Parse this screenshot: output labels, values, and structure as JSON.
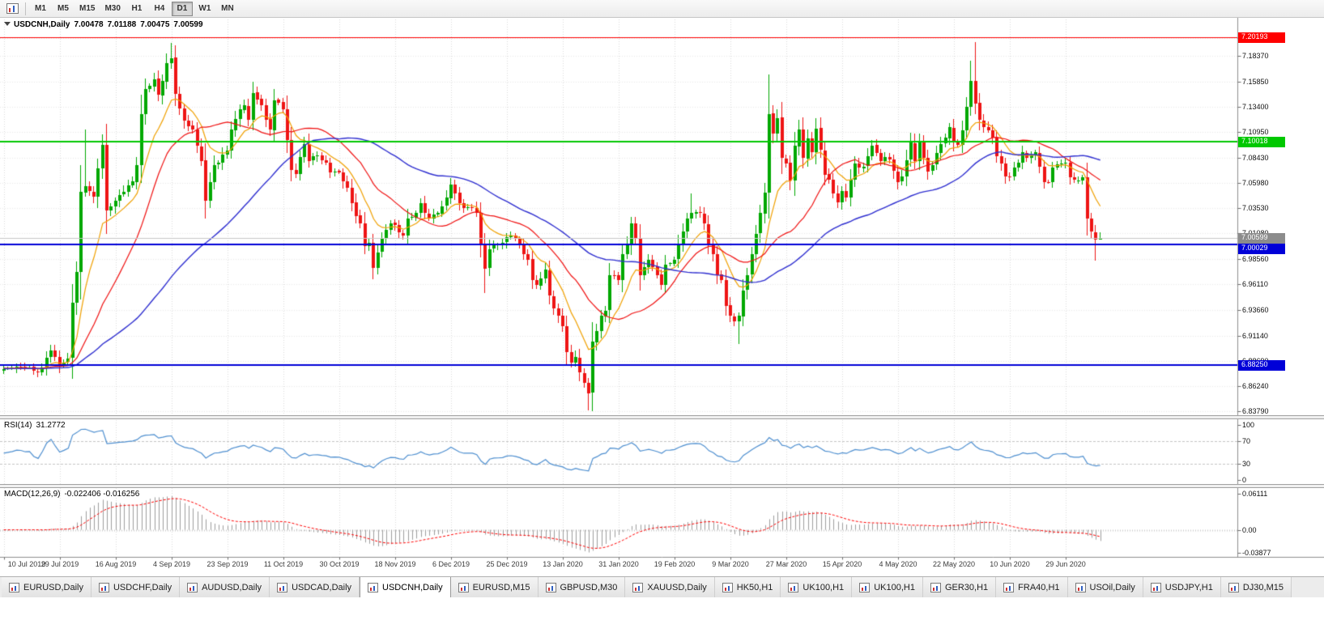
{
  "toolbar": {
    "timeframes": [
      "M1",
      "M5",
      "M15",
      "M30",
      "H1",
      "H4",
      "D1",
      "W1",
      "MN"
    ],
    "active": "D1"
  },
  "chart_data": {
    "type": "candlestick",
    "title": "USDCNH,Daily",
    "symbol": "USDCNH",
    "period": "Daily",
    "ohlc": {
      "open": "7.00478",
      "high": "7.01188",
      "low": "7.00475",
      "close": "7.00599"
    },
    "y_ticks": [
      "7.20080",
      "7.18370",
      "7.15850",
      "7.13400",
      "7.10950",
      "7.08430",
      "7.05980",
      "7.03530",
      "7.01080",
      "6.98560",
      "6.96110",
      "6.93660",
      "6.91140",
      "6.88690",
      "6.86240",
      "6.83790"
    ],
    "x_labels": [
      {
        "bar": 0,
        "label": "10 Jul 2019"
      },
      {
        "bar": 13,
        "label": "29 Jul 2019"
      },
      {
        "bar": 26,
        "label": "16 Aug 2019"
      },
      {
        "bar": 39,
        "label": "4 Sep 2019"
      },
      {
        "bar": 52,
        "label": "23 Sep 2019"
      },
      {
        "bar": 65,
        "label": "11 Oct 2019"
      },
      {
        "bar": 78,
        "label": "30 Oct 2019"
      },
      {
        "bar": 91,
        "label": "18 Nov 2019"
      },
      {
        "bar": 104,
        "label": "6 Dec 2019"
      },
      {
        "bar": 117,
        "label": "25 Dec 2019"
      },
      {
        "bar": 130,
        "label": "13 Jan 2020"
      },
      {
        "bar": 143,
        "label": "31 Jan 2020"
      },
      {
        "bar": 156,
        "label": "19 Feb 2020"
      },
      {
        "bar": 169,
        "label": "9 Mar 2020"
      },
      {
        "bar": 182,
        "label": "27 Mar 2020"
      },
      {
        "bar": 195,
        "label": "15 Apr 2020"
      },
      {
        "bar": 208,
        "label": "4 May 2020"
      },
      {
        "bar": 221,
        "label": "22 May 2020"
      },
      {
        "bar": 234,
        "label": "10 Jun 2020"
      },
      {
        "bar": 247,
        "label": "29 Jun 2020"
      }
    ],
    "levels": [
      {
        "price": 7.20193,
        "label": "7.20193",
        "color": "#FF0000",
        "width": 1
      },
      {
        "price": 7.10018,
        "label": "7.10018",
        "color": "#00C800",
        "width": 2
      },
      {
        "price": 7.00029,
        "label": "7.00029",
        "color": "#0000D8",
        "width": 2
      },
      {
        "price": 6.8825,
        "label": "6.88250",
        "color": "#0000D8",
        "width": 2
      }
    ],
    "current_price": {
      "value": 7.00599,
      "label": "7.00599",
      "tag_color": "#8C8C8C",
      "line_color": "#C8C8C8"
    },
    "colors": {
      "up": "#00A800",
      "down": "#EE1414",
      "grid_v": "#DADADA",
      "grid_h": "#E9E9E9",
      "axis": "#8E8E8E"
    },
    "moving_averages": [
      {
        "method": "ema",
        "period": 10,
        "color": "#F0A000"
      },
      {
        "method": "sma",
        "period": 21,
        "color": "#F01010"
      },
      {
        "method": "sma",
        "period": 55,
        "color": "#2F2FD0"
      }
    ],
    "rsi": {
      "label": "RSI(14)",
      "value": "31.2772",
      "period": 14,
      "color": "#4E8FD0",
      "axis": [
        "100",
        "70",
        "30",
        "0"
      ],
      "levels": [
        70,
        30
      ]
    },
    "macd": {
      "label": "MACD(12,26,9)",
      "value": "-0.022406 -0.016256",
      "fast": 12,
      "slow": 26,
      "signal": 9,
      "hist_color": "#9E9E9E",
      "signal_color": "#FF0000",
      "axis": [
        "0.06111",
        "0.00",
        "-0.03877"
      ]
    },
    "seed": 11,
    "bars": {
      "count": 256,
      "anchors": [
        [
          0,
          6.879
        ],
        [
          4,
          6.881
        ],
        [
          8,
          6.8755
        ],
        [
          11,
          6.897
        ],
        [
          13,
          6.8825
        ],
        [
          15,
          6.889
        ],
        [
          16,
          6.943
        ],
        [
          17,
          6.973
        ],
        [
          18,
          7.051
        ],
        [
          19,
          7.057
        ],
        [
          21,
          7.0465
        ],
        [
          23,
          7.097
        ],
        [
          24,
          7.033
        ],
        [
          26,
          7.0425
        ],
        [
          28,
          7.0515
        ],
        [
          30,
          7.0615
        ],
        [
          31,
          7.0775
        ],
        [
          32,
          7.127
        ],
        [
          33,
          7.151
        ],
        [
          35,
          7.161
        ],
        [
          36,
          7.1455
        ],
        [
          38,
          7.1765
        ],
        [
          39,
          7.1815
        ],
        [
          40,
          7.1465
        ],
        [
          42,
          7.1205
        ],
        [
          44,
          7.1115
        ],
        [
          46,
          7.0815
        ],
        [
          47,
          7.0425
        ],
        [
          49,
          7.0775
        ],
        [
          52,
          7.0915
        ],
        [
          53,
          7.1115
        ],
        [
          55,
          7.1315
        ],
        [
          56,
          7.1355
        ],
        [
          57,
          7.1215
        ],
        [
          58,
          7.1475
        ],
        [
          60,
          7.1355
        ],
        [
          61,
          7.1215
        ],
        [
          62,
          7.1115
        ],
        [
          63,
          7.1405
        ],
        [
          65,
          7.1315
        ],
        [
          66,
          7.1015
        ],
        [
          67,
          7.0725
        ],
        [
          68,
          7.0685
        ],
        [
          70,
          7.0975
        ],
        [
          71,
          7.0815
        ],
        [
          73,
          7.0865
        ],
        [
          75,
          7.0795
        ],
        [
          76,
          7.0705
        ],
        [
          78,
          7.0705
        ],
        [
          80,
          7.0555
        ],
        [
          81,
          7.0405
        ],
        [
          83,
          7.0205
        ],
        [
          84,
          6.9985
        ],
        [
          85,
          7.0015
        ],
        [
          86,
          6.9775
        ],
        [
          87,
          6.9925
        ],
        [
          88,
          7.0055
        ],
        [
          90,
          7.0205
        ],
        [
          92,
          7.0115
        ],
        [
          93,
          7.0085
        ],
        [
          94,
          7.0255
        ],
        [
          96,
          7.0305
        ],
        [
          97,
          7.0405
        ],
        [
          99,
          7.0255
        ],
        [
          101,
          7.0305
        ],
        [
          103,
          7.0455
        ],
        [
          104,
          7.0585
        ],
        [
          106,
          7.0405
        ],
        [
          107,
          7.0355
        ],
        [
          109,
          7.0355
        ],
        [
          110,
          7.0305
        ],
        [
          111,
          7.0005
        ],
        [
          112,
          6.9765
        ],
        [
          113,
          6.9955
        ],
        [
          115,
          7.0005
        ],
        [
          117,
          7.0075
        ],
        [
          119,
          7.0055
        ],
        [
          121,
          6.9905
        ],
        [
          122,
          6.9855
        ],
        [
          123,
          6.9655
        ],
        [
          124,
          6.9605
        ],
        [
          126,
          6.9755
        ],
        [
          127,
          6.9505
        ],
        [
          129,
          6.9305
        ],
        [
          130,
          6.9205
        ],
        [
          131,
          6.8955
        ],
        [
          132,
          6.8855
        ],
        [
          133,
          6.8905
        ],
        [
          134,
          6.8755
        ],
        [
          135,
          6.8655
        ],
        [
          136,
          6.8555
        ],
        [
          137,
          6.9055
        ],
        [
          139,
          6.9305
        ],
        [
          140,
          6.9355
        ],
        [
          141,
          6.9705
        ],
        [
          143,
          6.9655
        ],
        [
          144,
          6.9905
        ],
        [
          145,
          7.0005
        ],
        [
          146,
          7.0205
        ],
        [
          147,
          7.0055
        ],
        [
          148,
          6.9705
        ],
        [
          150,
          6.9855
        ],
        [
          152,
          6.9705
        ],
        [
          153,
          6.9605
        ],
        [
          154,
          6.9805
        ],
        [
          156,
          6.9855
        ],
        [
          157,
          7.0005
        ],
        [
          159,
          7.0255
        ],
        [
          160,
          7.0305
        ],
        [
          162,
          7.0305
        ],
        [
          163,
          7.0205
        ],
        [
          164,
          7.0005
        ],
        [
          165,
          6.9905
        ],
        [
          166,
          6.9705
        ],
        [
          167,
          6.9655
        ],
        [
          168,
          6.9405
        ],
        [
          169,
          6.9305
        ],
        [
          170,
          6.9255
        ],
        [
          171,
          6.9305
        ],
        [
          172,
          6.9555
        ],
        [
          174,
          6.9905
        ],
        [
          175,
          7.0105
        ],
        [
          176,
          7.0305
        ],
        [
          177,
          7.0505
        ],
        [
          178,
          7.127
        ],
        [
          179,
          7.108
        ],
        [
          180,
          7.123
        ],
        [
          181,
          7.084
        ],
        [
          182,
          7.079
        ],
        [
          183,
          7.062
        ],
        [
          184,
          7.096
        ],
        [
          185,
          7.112
        ],
        [
          186,
          7.084
        ],
        [
          187,
          7.103
        ],
        [
          188,
          7.09
        ],
        [
          189,
          7.113
        ],
        [
          190,
          7.092
        ],
        [
          191,
          7.068
        ],
        [
          192,
          7.063
        ],
        [
          193,
          7.05
        ],
        [
          194,
          7.041
        ],
        [
          195,
          7.052
        ],
        [
          196,
          7.046
        ],
        [
          198,
          7.079
        ],
        [
          200,
          7.076
        ],
        [
          202,
          7.096
        ],
        [
          204,
          7.081
        ],
        [
          206,
          7.083
        ],
        [
          208,
          7.061
        ],
        [
          209,
          7.066
        ],
        [
          211,
          7.099
        ],
        [
          212,
          7.081
        ],
        [
          213,
          7.099
        ],
        [
          215,
          7.071
        ],
        [
          217,
          7.089
        ],
        [
          219,
          7.104
        ],
        [
          220,
          7.114
        ],
        [
          221,
          7.099
        ],
        [
          222,
          7.097
        ],
        [
          223,
          7.111
        ],
        [
          224,
          7.134
        ],
        [
          225,
          7.159
        ],
        [
          226,
          7.137
        ],
        [
          227,
          7.121
        ],
        [
          228,
          7.114
        ],
        [
          229,
          7.111
        ],
        [
          230,
          7.104
        ],
        [
          231,
          7.086
        ],
        [
          232,
          7.079
        ],
        [
          233,
          7.066
        ],
        [
          234,
          7.0655
        ],
        [
          235,
          7.0745
        ],
        [
          236,
          7.0795
        ],
        [
          237,
          7.0895
        ],
        [
          238,
          7.0845
        ],
        [
          240,
          7.0895
        ],
        [
          241,
          7.0755
        ],
        [
          242,
          7.0605
        ],
        [
          243,
          7.0605
        ],
        [
          244,
          7.0745
        ],
        [
          246,
          7.0785
        ],
        [
          247,
          7.0795
        ],
        [
          248,
          7.0655
        ],
        [
          250,
          7.0625
        ],
        [
          251,
          7.0655
        ],
        [
          252,
          7.0255
        ],
        [
          253,
          7.0125
        ],
        [
          254,
          7.0045
        ],
        [
          255,
          7.00599
        ]
      ],
      "wick_overrides": {
        "19": {
          "high": 7.112
        },
        "39": {
          "high": 7.1962
        },
        "47": {
          "low": 7.0255
        },
        "104": {
          "high": 7.0645
        },
        "112": {
          "low": 6.9525
        },
        "136": {
          "low": 6.8385
        },
        "146": {
          "high": 7.0265
        },
        "160": {
          "high": 7.0495
        },
        "171": {
          "low": 6.9035
        },
        "178": {
          "high": 7.1655
        },
        "225": {
          "high": 7.1785
        },
        "226": {
          "high": 7.1965
        },
        "254": {
          "low": 6.9845
        },
        "255": {
          "open": 7.00478,
          "high": 7.01188,
          "low": 7.00475,
          "close": 7.00599
        }
      }
    }
  },
  "tabs": {
    "items": [
      "EURUSD,Daily",
      "USDCHF,Daily",
      "AUDUSD,Daily",
      "USDCAD,Daily",
      "USDCNH,Daily",
      "EURUSD,M15",
      "GBPUSD,M30",
      "XAUUSD,Daily",
      "HK50,H1",
      "UK100,H1",
      "UK100,H1",
      "GER30,H1",
      "FRA40,H1",
      "USOil,Daily",
      "USDJPY,H1",
      "DJ30,M15"
    ],
    "active": "USDCNH,Daily"
  }
}
